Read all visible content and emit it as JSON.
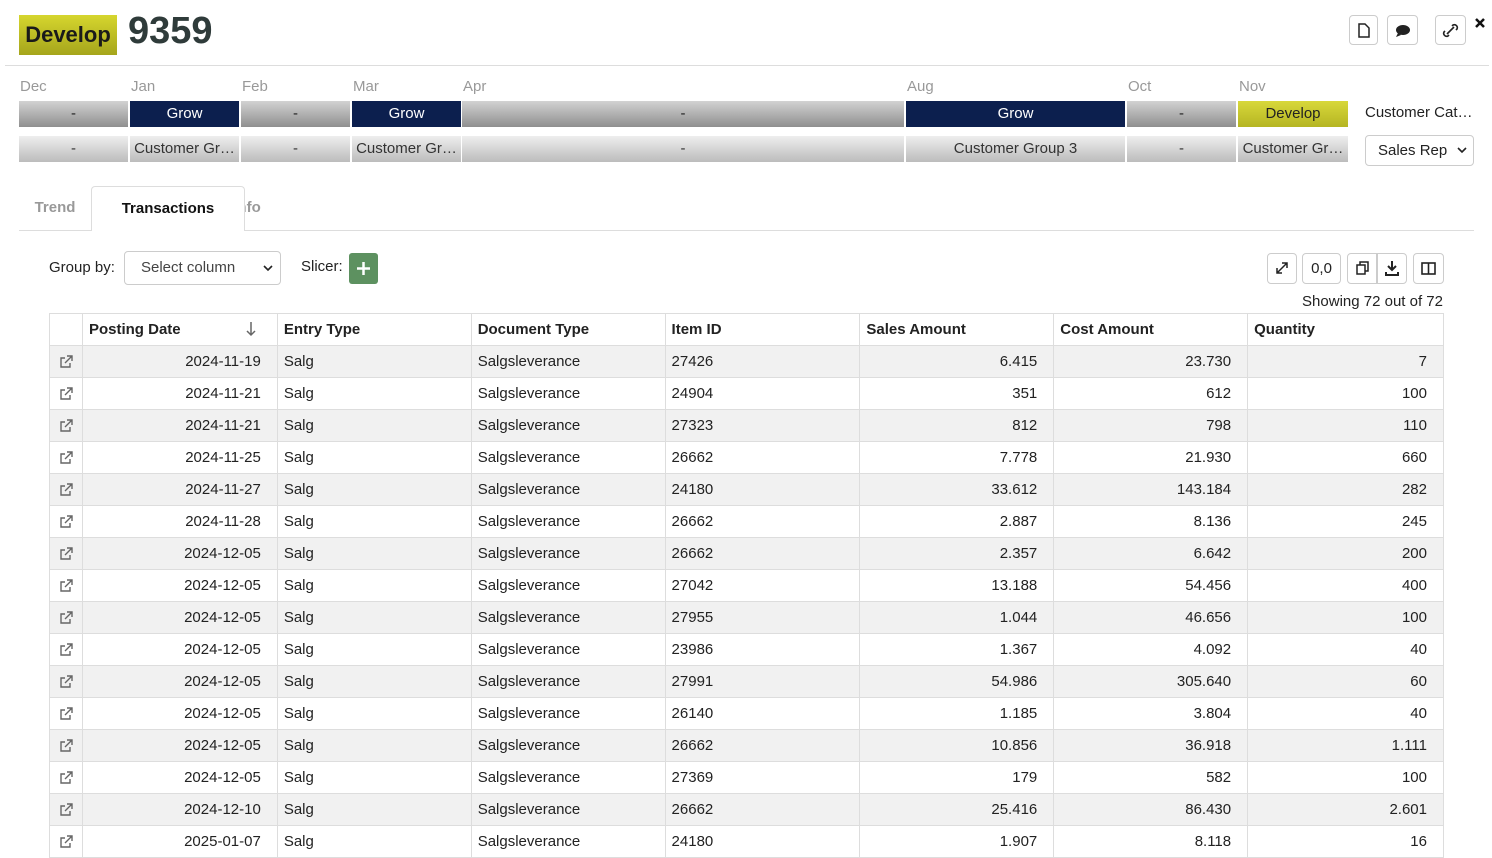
{
  "header": {
    "badge": "Develop",
    "title": "9359"
  },
  "timeline": {
    "segments": [
      {
        "month": "Dec",
        "status": "-",
        "group": "-"
      },
      {
        "month": "Jan",
        "status": "Grow",
        "group": "Customer Gr…"
      },
      {
        "month": "Feb",
        "status": "-",
        "group": "-"
      },
      {
        "month": "Mar",
        "status": "Grow",
        "group": "Customer Gr…"
      },
      {
        "month": "Apr",
        "status": "-",
        "group": "-"
      },
      {
        "month": "Aug",
        "status": "Grow",
        "group": "Customer Group 3"
      },
      {
        "month": "Oct",
        "status": "-",
        "group": "-"
      },
      {
        "month": "Nov",
        "status": "Develop",
        "group": "Customer Gr…"
      }
    ]
  },
  "side": {
    "category_label": "Customer Cat…",
    "select": "Sales Rep"
  },
  "tabs": [
    "Trend",
    "Transactions",
    "Info"
  ],
  "toolbar": {
    "group_by_label": "Group by:",
    "group_by_select": "Select column",
    "slicer_label": "Slicer:",
    "decimal_button": "0,0",
    "showing": "Showing 72 out of 72"
  },
  "table": {
    "columns": [
      "Posting Date",
      "Entry Type",
      "Document Type",
      "Item ID",
      "Sales Amount",
      "Cost Amount",
      "Quantity"
    ],
    "rows": [
      [
        "2024-11-19",
        "Salg",
        "Salgsleverance",
        "27426",
        "6.415",
        "23.730",
        "7"
      ],
      [
        "2024-11-21",
        "Salg",
        "Salgsleverance",
        "24904",
        "351",
        "612",
        "100"
      ],
      [
        "2024-11-21",
        "Salg",
        "Salgsleverance",
        "27323",
        "812",
        "798",
        "110"
      ],
      [
        "2024-11-25",
        "Salg",
        "Salgsleverance",
        "26662",
        "7.778",
        "21.930",
        "660"
      ],
      [
        "2024-11-27",
        "Salg",
        "Salgsleverance",
        "24180",
        "33.612",
        "143.184",
        "282"
      ],
      [
        "2024-11-28",
        "Salg",
        "Salgsleverance",
        "26662",
        "2.887",
        "8.136",
        "245"
      ],
      [
        "2024-12-05",
        "Salg",
        "Salgsleverance",
        "26662",
        "2.357",
        "6.642",
        "200"
      ],
      [
        "2024-12-05",
        "Salg",
        "Salgsleverance",
        "27042",
        "13.188",
        "54.456",
        "400"
      ],
      [
        "2024-12-05",
        "Salg",
        "Salgsleverance",
        "27955",
        "1.044",
        "46.656",
        "100"
      ],
      [
        "2024-12-05",
        "Salg",
        "Salgsleverance",
        "23986",
        "1.367",
        "4.092",
        "40"
      ],
      [
        "2024-12-05",
        "Salg",
        "Salgsleverance",
        "27991",
        "54.986",
        "305.640",
        "60"
      ],
      [
        "2024-12-05",
        "Salg",
        "Salgsleverance",
        "26140",
        "1.185",
        "3.804",
        "40"
      ],
      [
        "2024-12-05",
        "Salg",
        "Salgsleverance",
        "26662",
        "10.856",
        "36.918",
        "1.111"
      ],
      [
        "2024-12-05",
        "Salg",
        "Salgsleverance",
        "27369",
        "179",
        "582",
        "100"
      ],
      [
        "2024-12-10",
        "Salg",
        "Salgsleverance",
        "26662",
        "25.416",
        "86.430",
        "2.601"
      ],
      [
        "2025-01-07",
        "Salg",
        "Salgsleverance",
        "24180",
        "1.907",
        "8.118",
        "16"
      ]
    ]
  }
}
